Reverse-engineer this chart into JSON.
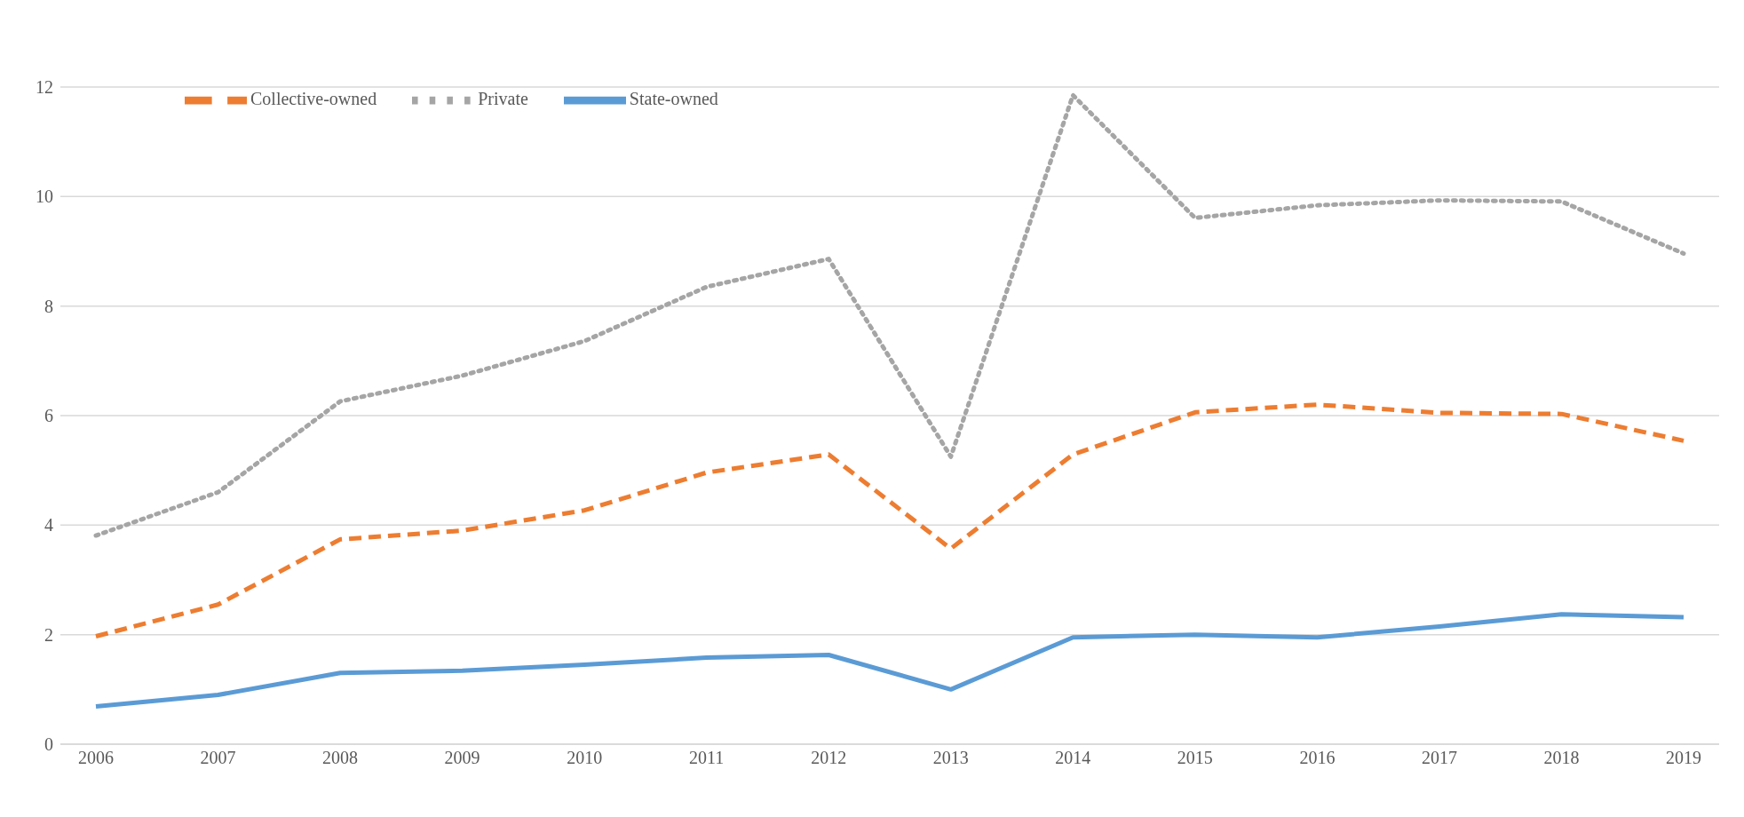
{
  "chart_data": {
    "type": "line",
    "categories": [
      "2006",
      "2007",
      "2008",
      "2009",
      "2010",
      "2011",
      "2012",
      "2013",
      "2014",
      "2015",
      "2016",
      "2017",
      "2018",
      "2019"
    ],
    "series": [
      {
        "name": "State-owned",
        "color": "#5b9bd5",
        "line_style": "solid",
        "values": [
          0.69,
          0.9,
          1.3,
          1.34,
          1.45,
          1.58,
          1.63,
          1.0,
          1.95,
          2.0,
          1.95,
          2.15,
          2.37,
          2.32
        ]
      },
      {
        "name": "Collective-owned",
        "color": "#ed7d31",
        "line_style": "dashed",
        "values": [
          1.97,
          2.55,
          3.74,
          3.9,
          4.27,
          4.96,
          5.29,
          3.57,
          5.29,
          6.06,
          6.2,
          6.05,
          6.03,
          5.54
        ]
      },
      {
        "name": "Private",
        "color": "#a5a5a5",
        "line_style": "dotted",
        "values": [
          3.81,
          4.6,
          6.26,
          6.73,
          7.36,
          8.35,
          8.86,
          5.25,
          11.85,
          9.61,
          9.84,
          9.93,
          9.91,
          8.96
        ]
      }
    ],
    "ylim": [
      0,
      12
    ],
    "yticks": [
      0,
      2,
      4,
      6,
      8,
      10,
      12
    ],
    "grid": "y",
    "legend": "top left",
    "marker": "none"
  }
}
